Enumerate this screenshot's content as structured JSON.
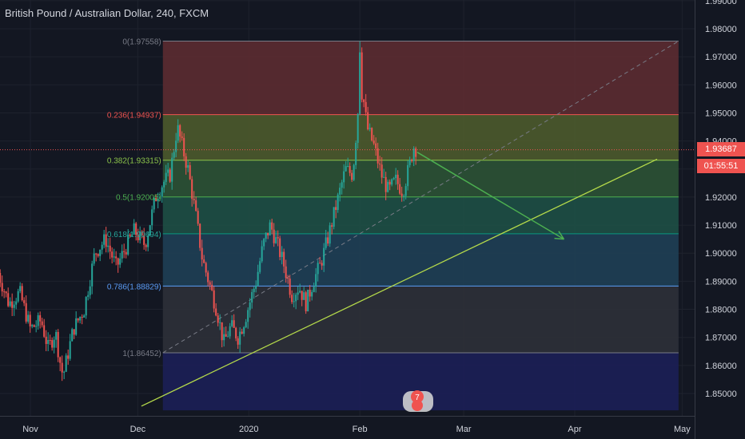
{
  "header": {
    "title": "British Pound / Australian Dollar, 240, FXCM"
  },
  "price_axis": {
    "current_price": "1.93687",
    "countdown": "01:55:51"
  },
  "event_badge": "7",
  "colors": {
    "background": "#131722",
    "grid": "#1e222d",
    "up": "#26a69a",
    "down": "#ef5350",
    "trendline": "#b4d94a",
    "projection_arrow": "#4caf50",
    "diagonal_dashed": "#787b86"
  },
  "chart_data": {
    "type": "candlestick",
    "symbol": "GBPAUD",
    "timeframe": "240",
    "ylim": [
      1.844,
      1.99
    ],
    "y_ticks": [
      1.85,
      1.86,
      1.87,
      1.88,
      1.89,
      1.9,
      1.91,
      1.92,
      1.93,
      1.94,
      1.95,
      1.96,
      1.97,
      1.98,
      1.99
    ],
    "y_tick_labels": [
      "1.85000",
      "1.86000",
      "1.87000",
      "1.88000",
      "1.89000",
      "1.90000",
      "1.91000",
      "1.92000",
      "1.93000",
      "1.94000",
      "1.95000",
      "1.96000",
      "1.97000",
      "1.98000",
      "1.99000"
    ],
    "x_ticks": [
      {
        "label": "Nov",
        "date": "2019-11-01"
      },
      {
        "label": "Dec",
        "date": "2019-12-01"
      },
      {
        "label": "2020",
        "date": "2020-01-01"
      },
      {
        "label": "Feb",
        "date": "2020-02-01"
      },
      {
        "label": "Mar",
        "date": "2020-03-01"
      },
      {
        "label": "Apr",
        "date": "2020-04-01"
      },
      {
        "label": "May",
        "date": "2020-05-01"
      }
    ],
    "price_path": [
      [
        "2019-10-23",
        1.893
      ],
      [
        "2019-10-26",
        1.882
      ],
      [
        "2019-10-29",
        1.886
      ],
      [
        "2019-11-01",
        1.873
      ],
      [
        "2019-11-04",
        1.876
      ],
      [
        "2019-11-06",
        1.866
      ],
      [
        "2019-11-08",
        1.872
      ],
      [
        "2019-11-10",
        1.8555
      ],
      [
        "2019-11-13",
        1.873
      ],
      [
        "2019-11-16",
        1.88
      ],
      [
        "2019-11-19",
        1.9
      ],
      [
        "2019-11-22",
        1.905
      ],
      [
        "2019-11-25",
        1.895
      ],
      [
        "2019-11-28",
        1.903
      ],
      [
        "2019-11-30",
        1.908
      ],
      [
        "2019-12-03",
        1.903
      ],
      [
        "2019-12-06",
        1.92
      ],
      [
        "2019-12-08",
        1.925
      ],
      [
        "2019-12-10",
        1.928
      ],
      [
        "2019-12-12",
        1.945
      ],
      [
        "2019-12-13",
        1.94
      ],
      [
        "2019-12-15",
        1.93
      ],
      [
        "2019-12-17",
        1.915
      ],
      [
        "2019-12-19",
        1.898
      ],
      [
        "2019-12-21",
        1.889
      ],
      [
        "2019-12-23",
        1.88
      ],
      [
        "2019-12-25",
        1.868
      ],
      [
        "2019-12-27",
        1.874
      ],
      [
        "2019-12-29",
        1.87
      ],
      [
        "2019-12-31",
        1.877
      ],
      [
        "2020-01-03",
        1.89
      ],
      [
        "2020-01-05",
        1.903
      ],
      [
        "2020-01-07",
        1.91
      ],
      [
        "2020-01-09",
        1.903
      ],
      [
        "2020-01-11",
        1.895
      ],
      [
        "2020-01-13",
        1.885
      ],
      [
        "2020-01-15",
        1.888
      ],
      [
        "2020-01-17",
        1.882
      ],
      [
        "2020-01-19",
        1.89
      ],
      [
        "2020-01-21",
        1.896
      ],
      [
        "2020-01-23",
        1.905
      ],
      [
        "2020-01-25",
        1.915
      ],
      [
        "2020-01-27",
        1.925
      ],
      [
        "2020-01-28",
        1.93
      ],
      [
        "2020-01-30",
        1.928
      ],
      [
        "2020-01-31",
        1.943
      ],
      [
        "2020-02-01",
        1.96
      ],
      [
        "2020-02-02",
        1.955
      ],
      [
        "2020-02-03",
        1.945
      ],
      [
        "2020-02-05",
        1.938
      ],
      [
        "2020-02-07",
        1.928
      ],
      [
        "2020-02-09",
        1.922
      ],
      [
        "2020-02-11",
        1.926
      ],
      [
        "2020-02-13",
        1.922
      ],
      [
        "2020-02-15",
        1.932
      ],
      [
        "2020-02-16",
        1.938
      ],
      [
        "2020-02-17",
        1.9369
      ]
    ],
    "key_points": {
      "swing_low": [
        "2019-11-10",
        1.8545
      ],
      "swing_high": [
        "2020-02-01",
        1.97558
      ]
    },
    "fibonacci": {
      "start_date": "2019-12-08",
      "end_date": "2020-04-30",
      "levels": [
        {
          "ratio": "0",
          "price": 1.97558,
          "label": "0(1.97558)",
          "line": "#787b86",
          "fill": "#5c2b31",
          "label_color": "#787b86"
        },
        {
          "ratio": "0.236",
          "price": 1.94937,
          "label": "0.236(1.94937)",
          "line": "#ef5350",
          "fill": "#4c5a2c",
          "label_color": "#ef5350"
        },
        {
          "ratio": "0.382",
          "price": 1.93315,
          "label": "0.382(1.93315)",
          "line": "#8bc34a",
          "fill": "#2c5235",
          "label_color": "#8bc34a"
        },
        {
          "ratio": "0.5",
          "price": 1.92005,
          "label": "0.5(1.92005)",
          "line": "#4caf50",
          "fill": "#1e4f45",
          "label_color": "#4caf50"
        },
        {
          "ratio": "0.618",
          "price": 1.90694,
          "label": "0.618(1.90694)",
          "line": "#089981",
          "fill": "#1f3f55",
          "label_color": "#26a69a"
        },
        {
          "ratio": "0.786",
          "price": 1.88829,
          "label": "0.786(1.88829)",
          "line": "#5b9cf6",
          "fill": "#2e3039",
          "label_color": "#5b9cf6"
        },
        {
          "ratio": "1",
          "price": 1.86452,
          "label": "1(1.86452)",
          "line": "#787b86",
          "fill": "#1c1f57",
          "label_color": "#787b86"
        }
      ]
    },
    "trendline": {
      "start": [
        "2019-12-02",
        1.8455
      ],
      "end": [
        "2020-04-24",
        1.9335
      ]
    },
    "diagonal": {
      "start": [
        "2019-12-08",
        1.86452
      ],
      "end": [
        "2020-04-30",
        1.97558
      ]
    },
    "projection_arrow": {
      "start": [
        "2020-02-17",
        1.936
      ],
      "end": [
        "2020-03-29",
        1.905
      ]
    }
  }
}
